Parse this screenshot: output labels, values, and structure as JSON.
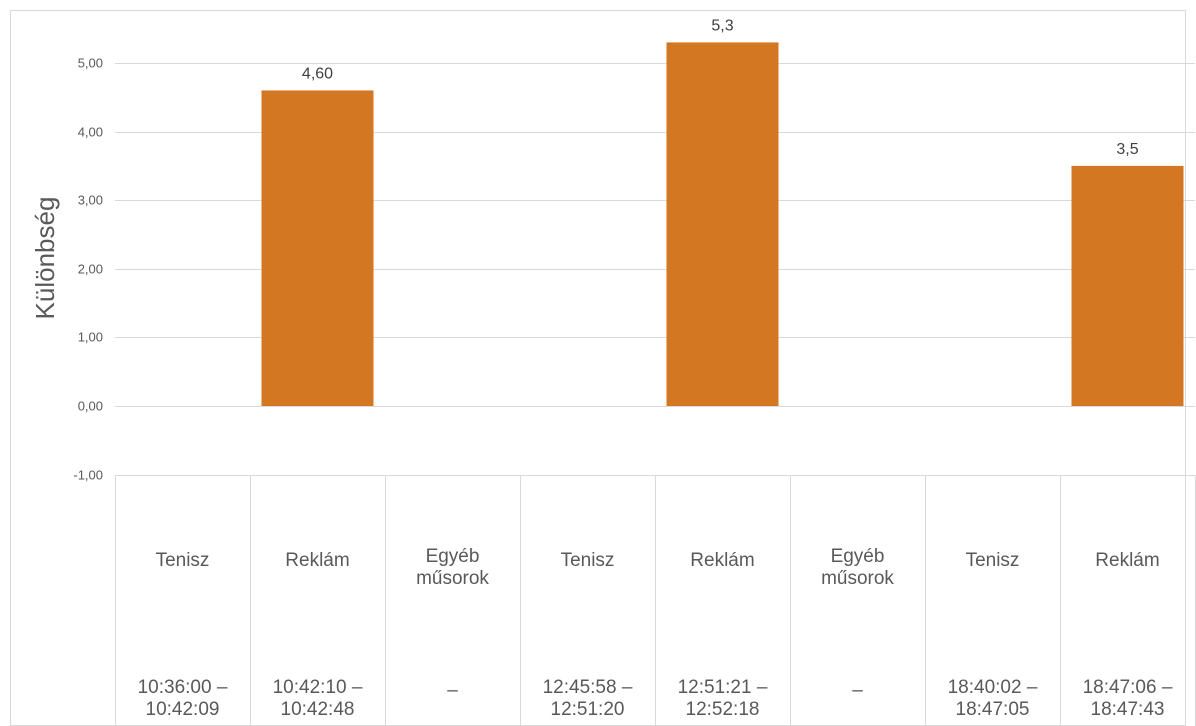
{
  "chart_data": {
    "type": "bar",
    "ylabel": "Különbség",
    "ylim": [
      -1,
      5.6
    ],
    "y_ticks": [
      "-1,00",
      "0,00",
      "1,00",
      "2,00",
      "3,00",
      "4,00",
      "5,00"
    ],
    "y_tick_values": [
      -1,
      0,
      1,
      2,
      3,
      4,
      5
    ],
    "grid": true,
    "categories": [
      {
        "name": "Tenisz",
        "time": "10:36:00 – 10:42:09"
      },
      {
        "name": "Reklám",
        "time": "10:42:10 – 10:42:48"
      },
      {
        "name": "Egyéb műsorok",
        "time": "–"
      },
      {
        "name": "Tenisz",
        "time": "12:45:58 – 12:51:20"
      },
      {
        "name": "Reklám",
        "time": "12:51:21 – 12:52:18"
      },
      {
        "name": "Egyéb műsorok",
        "time": "–"
      },
      {
        "name": "Tenisz",
        "time": "18:40:02 – 18:47:05"
      },
      {
        "name": "Reklám",
        "time": "18:47:06 – 18:47:43"
      }
    ],
    "values": [
      null,
      4.6,
      null,
      null,
      5.3,
      null,
      null,
      3.5
    ],
    "data_labels": [
      null,
      "4,60",
      null,
      null,
      "5,3",
      null,
      null,
      "3,5"
    ],
    "bar_color": "#D47722",
    "grid_color": "#D9D9D9",
    "text_color": "#595959"
  }
}
